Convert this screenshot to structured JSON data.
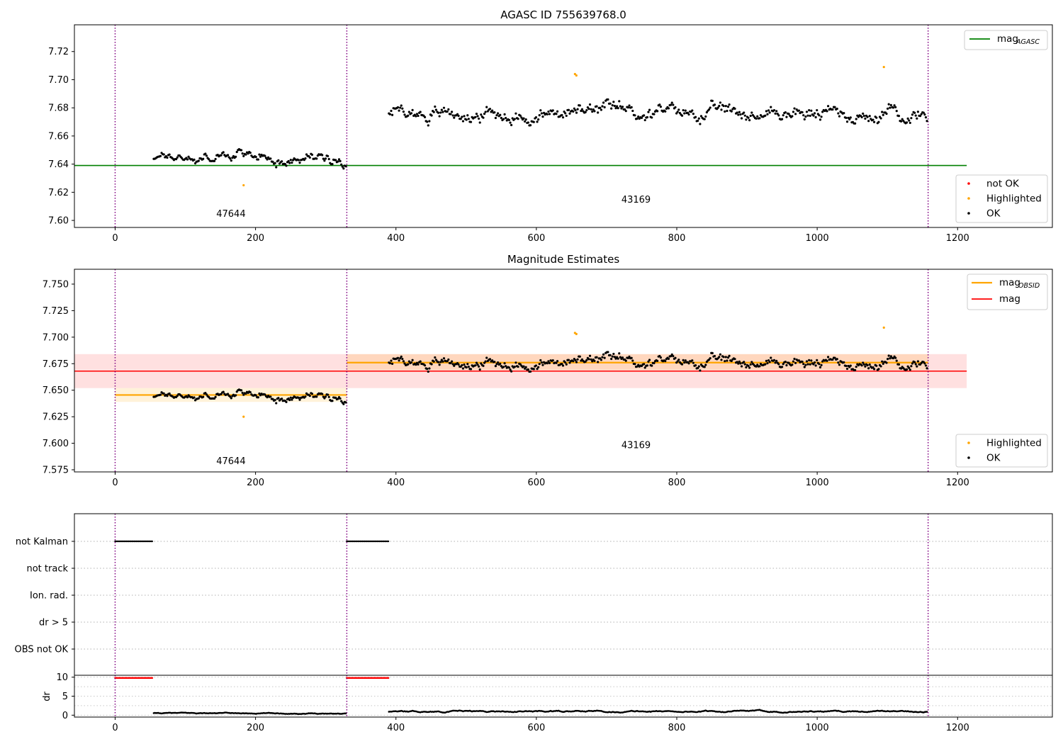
{
  "chart_data": [
    {
      "type": "scatter",
      "title": "AGASC ID 755639768.0",
      "xlim": [
        -58,
        1335
      ],
      "ylim": [
        7.595,
        7.739
      ],
      "xticks": [
        "0",
        "200",
        "400",
        "600",
        "800",
        "1000",
        "1200"
      ],
      "yticks": [
        "7.60",
        "7.62",
        "7.64",
        "7.66",
        "7.68",
        "7.70",
        "7.72"
      ],
      "lines": [
        {
          "name": "mag_AGASC",
          "label": "mag",
          "sub": "AGASC",
          "color": "#008000",
          "y": 7.639,
          "x": [
            -58,
            1213
          ]
        }
      ],
      "obs_boundaries": [
        0,
        330,
        1158
      ],
      "obsid_labels": [
        {
          "text": "47644",
          "x": 165,
          "y": 7.6025
        },
        {
          "text": "43169",
          "x": 742,
          "y": 7.6125
        }
      ],
      "series": [
        {
          "name": "not OK",
          "color": "#ff0000"
        },
        {
          "name": "Highlighted",
          "color": "#ffa500"
        },
        {
          "name": "OK",
          "color": "#000000"
        }
      ],
      "segments": [
        {
          "x": [
            55,
            330
          ],
          "base": 7.6455,
          "amp": 0.0075
        },
        {
          "x": [
            390,
            1158
          ],
          "base": 7.676,
          "amp": 0.01
        }
      ],
      "highlighted": [
        [
          183,
          7.625
        ],
        [
          655,
          7.704
        ],
        [
          657,
          7.703
        ],
        [
          1095,
          7.709
        ]
      ],
      "legend_placement": [
        "upper right",
        "lower right"
      ]
    },
    {
      "type": "scatter",
      "title": "Magnitude Estimates",
      "xlim": [
        -58,
        1335
      ],
      "ylim": [
        7.573,
        7.764
      ],
      "xticks": [
        "0",
        "200",
        "400",
        "600",
        "800",
        "1000",
        "1200"
      ],
      "yticks": [
        "7.575",
        "7.600",
        "7.625",
        "7.650",
        "7.675",
        "7.700",
        "7.725",
        "7.750"
      ],
      "lines": [
        {
          "name": "mag_OBSID",
          "label": "mag",
          "sub": "OBSID",
          "color": "#ffa500"
        },
        {
          "name": "mag",
          "label": "mag",
          "color": "#ff0000",
          "y": 7.668,
          "band": [
            7.652,
            7.684
          ],
          "x": [
            -58,
            1213
          ]
        }
      ],
      "obsid_means": [
        {
          "x": [
            0,
            330
          ],
          "y": 7.6455,
          "band": [
            7.639,
            7.652
          ]
        },
        {
          "x": [
            330,
            1158
          ],
          "y": 7.676,
          "band": [
            7.669,
            7.684
          ]
        }
      ],
      "obs_boundaries": [
        0,
        330,
        1158
      ],
      "obsid_labels": [
        {
          "text": "47644",
          "x": 165,
          "y": 7.5805
        },
        {
          "text": "43169",
          "x": 742,
          "y": 7.5955
        }
      ],
      "series": [
        {
          "name": "Highlighted",
          "color": "#ffa500"
        },
        {
          "name": "OK",
          "color": "#000000"
        }
      ],
      "legend_placement": [
        "upper right",
        "lower right"
      ]
    },
    {
      "type": "scatter",
      "xlim": [
        -58,
        1335
      ],
      "flags": [
        "not Kalman",
        "not track",
        "Ion. rad.",
        "dr > 5",
        "OBS not OK"
      ],
      "flag_ranges": {
        "not Kalman": [
          [
            0,
            54
          ],
          [
            330,
            390
          ]
        ]
      },
      "obs_boundaries": [
        0,
        330,
        1158
      ]
    },
    {
      "type": "scatter",
      "ylabel": "dr",
      "xlim": [
        -58,
        1335
      ],
      "ylim": [
        -0.5,
        10.5
      ],
      "yticks": [
        "0",
        "5",
        "10"
      ],
      "xticks": [
        "0",
        "200",
        "400",
        "600",
        "800",
        "1000",
        "1200"
      ],
      "flagged_dr": {
        "value": 9.8,
        "x": [
          [
            0,
            54
          ],
          [
            330,
            390
          ]
        ],
        "color": "#ff0000"
      },
      "segments": [
        {
          "x": [
            55,
            330
          ],
          "base": 0.5,
          "amp": 0.3
        },
        {
          "x": [
            390,
            1158
          ],
          "base": 1.0,
          "amp": 0.45
        }
      ],
      "obs_boundaries": [
        0,
        330,
        1158
      ]
    }
  ]
}
